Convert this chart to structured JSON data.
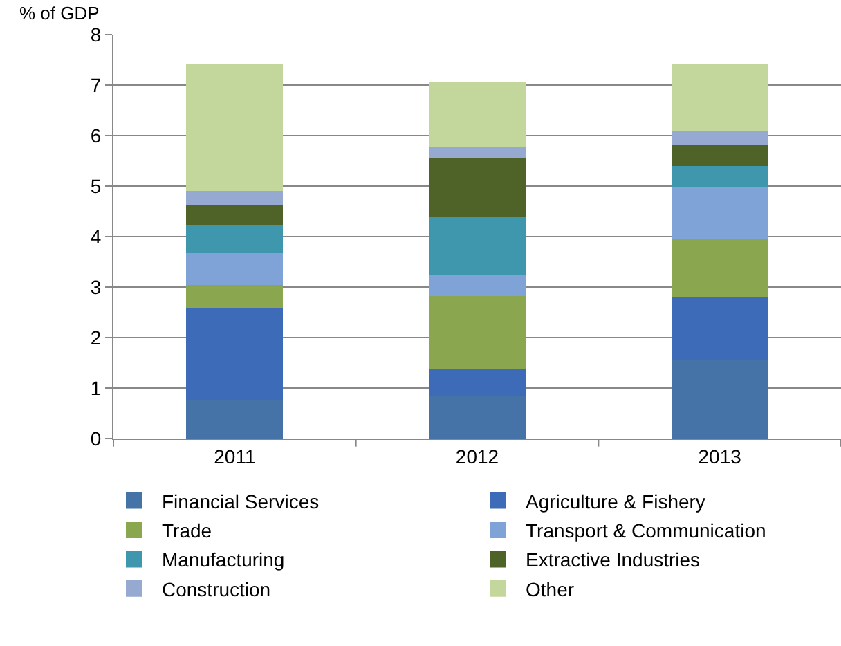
{
  "chart_data": {
    "type": "bar",
    "stacked": true,
    "ylabel": "% of GDP",
    "categories": [
      "2011",
      "2012",
      "2013"
    ],
    "series": [
      {
        "name": "Financial Services",
        "color": "#4572a7",
        "values": [
          0.75,
          0.83,
          1.56
        ]
      },
      {
        "name": "Agriculture & Fishery",
        "color": "#3d6bb8",
        "values": [
          1.82,
          0.54,
          1.23
        ]
      },
      {
        "name": "Trade",
        "color": "#8aa64e",
        "values": [
          0.47,
          1.45,
          1.17
        ]
      },
      {
        "name": "Transport & Communication",
        "color": "#7fa3d6",
        "values": [
          0.63,
          0.42,
          1.03
        ]
      },
      {
        "name": "Manufacturing",
        "color": "#3f97ad",
        "values": [
          0.56,
          1.14,
          0.41
        ]
      },
      {
        "name": "Extractive Industries",
        "color": "#4f6228",
        "values": [
          0.39,
          1.18,
          0.41
        ]
      },
      {
        "name": "Construction",
        "color": "#95a9d1",
        "values": [
          0.29,
          0.21,
          0.28
        ]
      },
      {
        "name": "Other",
        "color": "#c3d69b",
        "values": [
          2.52,
          1.3,
          1.34
        ]
      }
    ],
    "ylim": [
      0,
      8
    ],
    "yticks": [
      0,
      1,
      2,
      3,
      4,
      5,
      6,
      7,
      8
    ],
    "grid": "y",
    "legend": "bottom"
  }
}
